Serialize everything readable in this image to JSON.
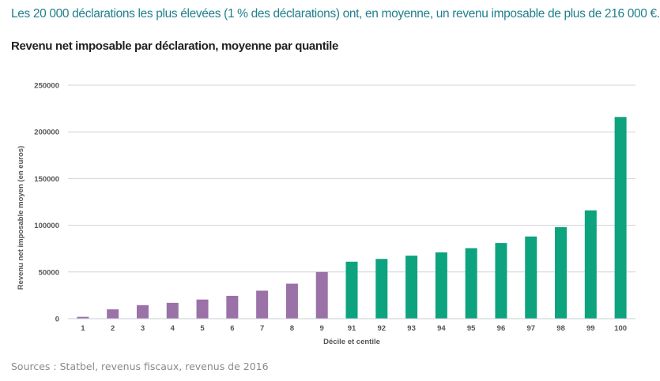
{
  "headline": "Les 20 000 déclarations les plus élevées (1 % des déclarations) ont, en moyenne, un revenu imposable de plus de 216 000 €.",
  "source": "Sources : Statbel, revenus fiscaux, revenus de 2016",
  "colors": {
    "headline": "#1f7f8c",
    "decile_bar": "#9b72a8",
    "centile_bar": "#0ea37f",
    "grid": "#cfd3da",
    "axis": "#c8ccd2"
  },
  "chart_data": {
    "type": "bar",
    "title": "Revenu net imposable par déclaration, moyenne par quantile",
    "xlabel": "Décile et centile",
    "ylabel": "Revenu net imposable moyen (en euros)",
    "categories": [
      "1",
      "2",
      "3",
      "4",
      "5",
      "6",
      "7",
      "8",
      "9",
      "91",
      "92",
      "93",
      "94",
      "95",
      "96",
      "97",
      "98",
      "99",
      "100"
    ],
    "values": [
      2000,
      10000,
      14500,
      17000,
      20500,
      24500,
      30000,
      37500,
      50000,
      61000,
      64000,
      67500,
      71000,
      75500,
      81000,
      88000,
      98000,
      116000,
      216000
    ],
    "bar_groups": [
      "decile",
      "decile",
      "decile",
      "decile",
      "decile",
      "decile",
      "decile",
      "decile",
      "decile",
      "centile",
      "centile",
      "centile",
      "centile",
      "centile",
      "centile",
      "centile",
      "centile",
      "centile",
      "centile"
    ],
    "ylim": [
      0,
      250000
    ],
    "yticks": [
      "0",
      "50000",
      "100000",
      "150000",
      "200000",
      "250000"
    ],
    "grid": true,
    "legend": "none"
  }
}
